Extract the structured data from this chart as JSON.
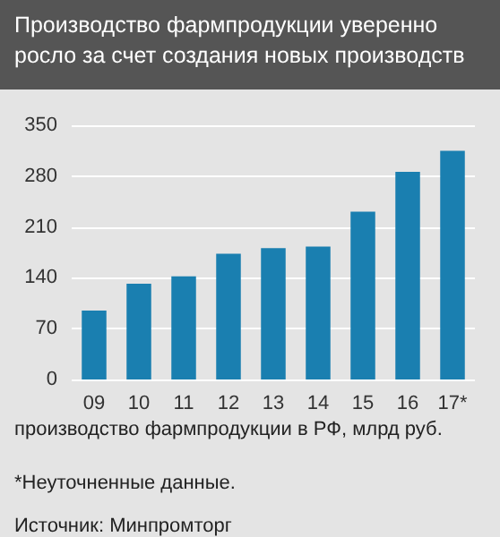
{
  "chart_data": {
    "type": "bar",
    "title": "Производство фармпродукции уверенно росло за счет создания новых производств",
    "categories": [
      "09",
      "10",
      "11",
      "12",
      "13",
      "14",
      "15",
      "16",
      "17*"
    ],
    "values": [
      95,
      132,
      142,
      173,
      181,
      183,
      231,
      286,
      315
    ],
    "color": "#1a7fb0",
    "ylim": [
      0,
      350
    ],
    "yticks": [
      0,
      70,
      140,
      210,
      280,
      350
    ],
    "grid": "y",
    "annotations": [
      "производство фармпродукции в РФ, млрд руб.",
      "*Неуточненные данные.",
      "Источник: Минпромторг"
    ]
  }
}
